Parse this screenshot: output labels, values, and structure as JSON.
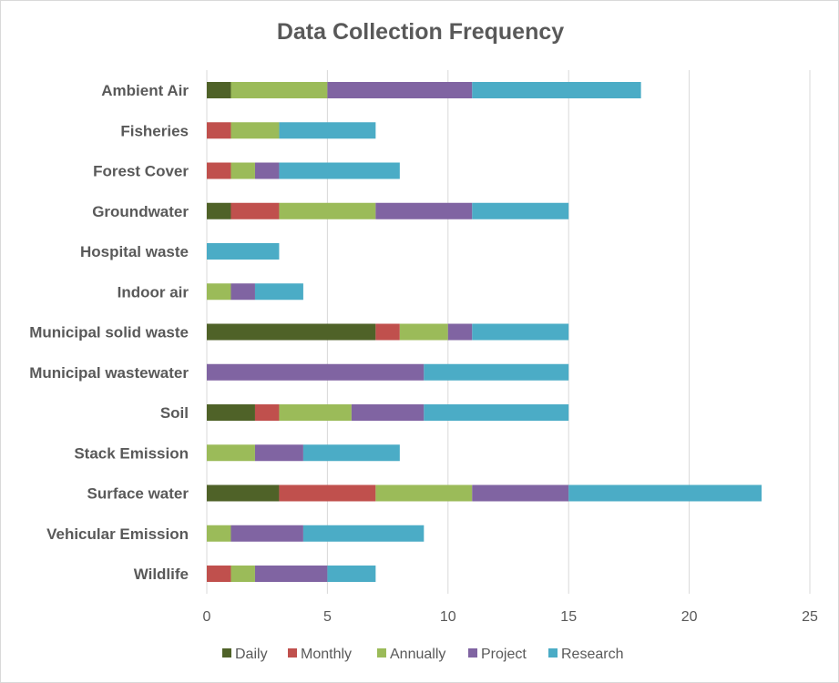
{
  "chart_data": {
    "type": "bar",
    "orientation": "horizontal",
    "stacked": true,
    "title": "Data Collection Frequency",
    "xlabel": "",
    "ylabel": "",
    "xlim": [
      0,
      25
    ],
    "xticks": [
      0,
      5,
      10,
      15,
      20,
      25
    ],
    "grid": "vertical",
    "legend_position": "bottom",
    "categories": [
      "Ambient Air",
      "Fisheries",
      "Forest Cover",
      "Groundwater",
      "Hospital waste",
      "Indoor air",
      "Municipal solid waste",
      "Municipal wastewater",
      "Soil",
      "Stack Emission",
      "Surface water",
      "Vehicular Emission",
      "Wildlife"
    ],
    "series": [
      {
        "name": "Daily",
        "color": "#4f6228",
        "values": [
          1,
          0,
          0,
          1,
          0,
          0,
          7,
          0,
          2,
          0,
          3,
          0,
          0
        ]
      },
      {
        "name": "Monthly",
        "color": "#c0504d",
        "values": [
          0,
          1,
          1,
          2,
          0,
          0,
          1,
          0,
          1,
          0,
          4,
          0,
          1
        ]
      },
      {
        "name": "Annually",
        "color": "#9bbb59",
        "values": [
          4,
          2,
          1,
          4,
          0,
          1,
          2,
          0,
          3,
          2,
          4,
          1,
          1
        ]
      },
      {
        "name": "Project",
        "color": "#8064a2",
        "values": [
          6,
          0,
          1,
          4,
          0,
          1,
          1,
          9,
          3,
          2,
          4,
          3,
          3
        ]
      },
      {
        "name": "Research",
        "color": "#4bacc6",
        "values": [
          7,
          4,
          5,
          4,
          3,
          2,
          4,
          6,
          6,
          4,
          8,
          5,
          2
        ]
      }
    ]
  }
}
